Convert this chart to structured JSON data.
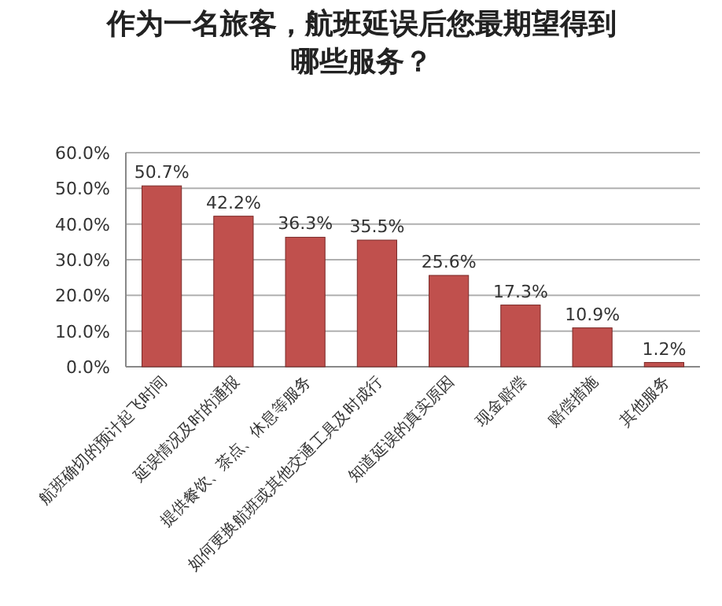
{
  "chart_data": {
    "type": "bar",
    "title": "作为一名旅客，航班延误后您最期望得到哪些服务？",
    "categories": [
      "航班确切的预计起飞时间",
      "延误情况及时的通报",
      "提供餐饮、茶点、休息等服务",
      "如何更换航班或其他交通工具及时成行",
      "知道延误的真实原因",
      "现金赔偿",
      "赔偿措施",
      "其他服务"
    ],
    "values": [
      50.7,
      42.2,
      36.3,
      35.5,
      25.6,
      17.3,
      10.9,
      1.2
    ],
    "value_labels": [
      "50.7%",
      "42.2%",
      "36.3%",
      "35.5%",
      "25.6%",
      "17.3%",
      "10.9%",
      "1.2%"
    ],
    "color": "#c0504d",
    "ylim": [
      0,
      60
    ],
    "yticks": [
      {
        "value": 0,
        "label": "0.0%"
      },
      {
        "value": 10,
        "label": "10.0%"
      },
      {
        "value": 20,
        "label": "20.0%"
      },
      {
        "value": 30,
        "label": "30.0%"
      },
      {
        "value": 40,
        "label": "40.0%"
      },
      {
        "value": 50,
        "label": "50.0%"
      },
      {
        "value": 60,
        "label": "60.0%"
      }
    ],
    "grid": "y"
  }
}
